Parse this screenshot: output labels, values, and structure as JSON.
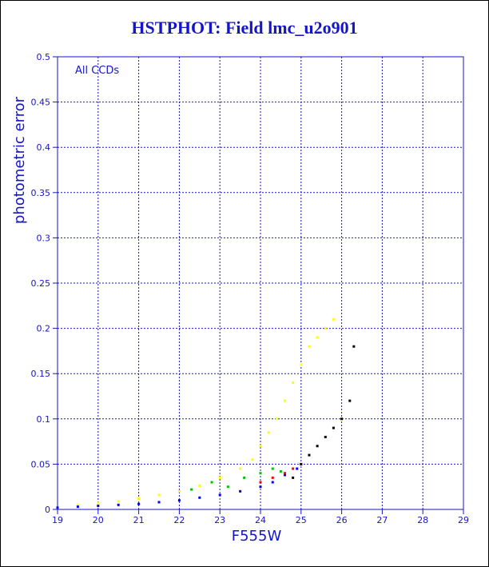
{
  "chart_data": {
    "type": "scatter",
    "title": "HSTPHOT: Field lmc_u2o901",
    "xlabel": "F555W",
    "ylabel": "photometric error",
    "annotation": "All CCDs",
    "xlim": [
      19,
      29
    ],
    "ylim": [
      0,
      0.5
    ],
    "x_ticks": [
      "19",
      "20",
      "21",
      "22",
      "23",
      "24",
      "25",
      "26",
      "27",
      "28",
      "29"
    ],
    "y_ticks": [
      "0",
      "0.05",
      "0.1",
      "0.15",
      "0.2",
      "0.25",
      "0.3",
      "0.35",
      "0.4",
      "0.45",
      "0.5"
    ],
    "grid": true,
    "series": [
      {
        "color": "#ffff00",
        "x": [
          19.5,
          20.0,
          20.5,
          21.0,
          21.5,
          22.0,
          22.5,
          23.0,
          23.5,
          23.8,
          24.0,
          24.2,
          24.4,
          24.6,
          24.8,
          25.0,
          25.2,
          25.4,
          25.6,
          25.8
        ],
        "y": [
          0.005,
          0.007,
          0.009,
          0.012,
          0.016,
          0.02,
          0.026,
          0.035,
          0.045,
          0.055,
          0.07,
          0.085,
          0.1,
          0.12,
          0.14,
          0.16,
          0.18,
          0.19,
          0.2,
          0.21
        ]
      },
      {
        "color": "#0000ff",
        "x": [
          19.0,
          19.5,
          20.0,
          20.5,
          21.0,
          21.5,
          22.0,
          22.5,
          23.0,
          23.5,
          24.0,
          24.3,
          24.6,
          24.9
        ],
        "y": [
          0.002,
          0.003,
          0.004,
          0.005,
          0.006,
          0.008,
          0.01,
          0.013,
          0.016,
          0.02,
          0.025,
          0.03,
          0.038,
          0.045
        ]
      },
      {
        "color": "#00c000",
        "x": [
          22.3,
          22.8,
          23.2,
          23.6,
          24.0,
          24.3,
          24.5
        ],
        "y": [
          0.022,
          0.03,
          0.025,
          0.035,
          0.04,
          0.045,
          0.042
        ]
      },
      {
        "color": "#ff0000",
        "x": [
          24.0,
          24.3,
          24.6,
          24.8,
          25.0
        ],
        "y": [
          0.03,
          0.035,
          0.04,
          0.045,
          0.05
        ]
      },
      {
        "color": "#000000",
        "x": [
          24.8,
          25.0,
          25.2,
          25.4,
          25.6,
          25.8,
          26.0,
          26.2,
          26.3
        ],
        "y": [
          0.035,
          0.05,
          0.06,
          0.07,
          0.08,
          0.09,
          0.1,
          0.12,
          0.18
        ]
      }
    ]
  }
}
